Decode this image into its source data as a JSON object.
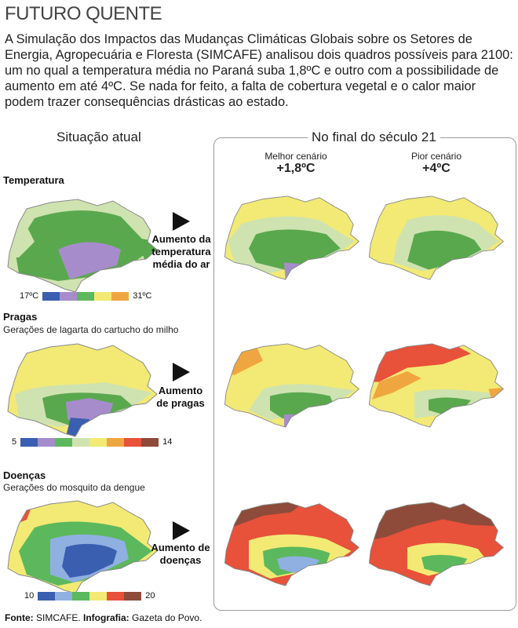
{
  "header": {
    "kicker": "FUTURO QUENTE",
    "intro": "A Simulação dos Impactos das Mudanças Climáticas Globais sobre os Setores de Energia, Agropecuária e Floresta (SIMCAFE) analisou dois quadros possíveis para 2100: um no qual a temperatura média no Paraná suba 1,8ºC e outro com a possibilidade de aumento em até 4ºC. Se nada for feito, a falta de cobertura vegetal e o calor maior podem trazer consequências drásticas ao estado."
  },
  "columns": {
    "current": "Situação atual",
    "future": "No final do século 21"
  },
  "scenarios": {
    "best_label": "Melhor cenário",
    "best_temp": "+1,8ºC",
    "worst_label": "Pior cenário",
    "worst_temp": "+4ºC"
  },
  "sections": {
    "temperature": {
      "title": "Temperatura",
      "arrow_line1": "Aumento da",
      "arrow_line2": "temperatura",
      "arrow_line3": "média do ar",
      "legend_min": "17ºC",
      "legend_max": "31ºC"
    },
    "pests": {
      "title": "Pragas",
      "subtitle": "Gerações de lagarta do cartucho do milho",
      "arrow_line1": "Aumento",
      "arrow_line2": "de pragas",
      "legend_min": "5",
      "legend_max": "14"
    },
    "diseases": {
      "title": "Doenças",
      "subtitle": "Gerações do mosquito da dengue",
      "arrow_line1": "Aumento de",
      "arrow_line2": "doenças",
      "legend_min": "10",
      "legend_max": "20"
    }
  },
  "legend_colors": {
    "temperature": [
      "#3a5fb0",
      "#a78ccc",
      "#5cb85c",
      "#f2ea74",
      "#f0a640"
    ],
    "pests": [
      "#3a5fb0",
      "#a78ccc",
      "#5cb85c",
      "#cfe3b0",
      "#f2ea74",
      "#f0a640",
      "#e8513a",
      "#8e4b3a"
    ],
    "diseases": [
      "#3a5fb0",
      "#8fb0e0",
      "#5cb85c",
      "#f2ea74",
      "#e8513a",
      "#8e4b3a"
    ]
  },
  "footer": {
    "source_label": "Fonte:",
    "source_value": "SIMCAFE.",
    "credit_label": "Infografia:",
    "credit_value": "Gazeta do Povo."
  }
}
